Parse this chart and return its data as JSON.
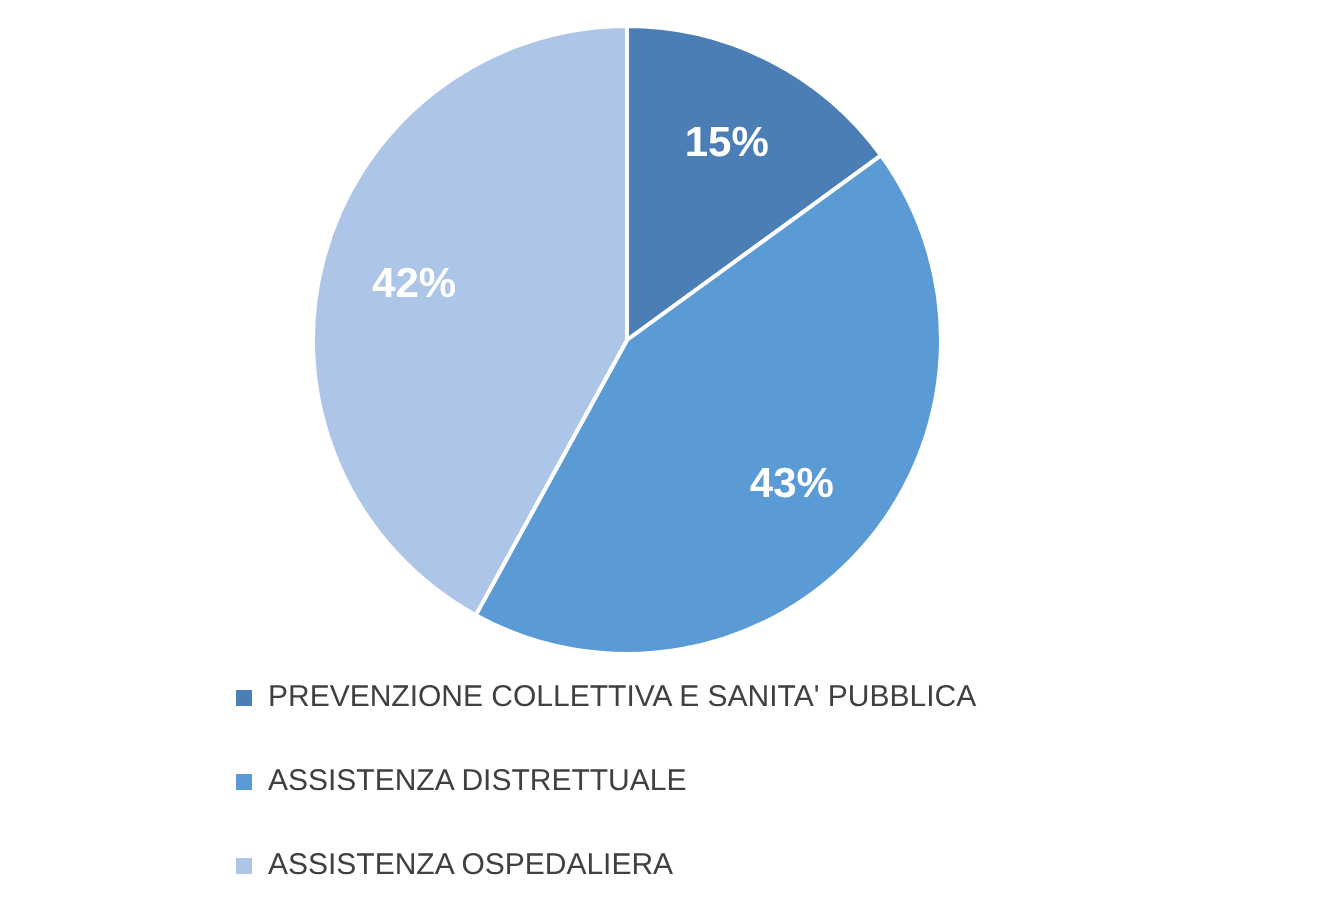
{
  "chart_data": {
    "type": "pie",
    "categories": [
      "PREVENZIONE COLLETTIVA E SANITA' PUBBLICA",
      "ASSISTENZA DISTRETTUALE",
      "ASSISTENZA OSPEDALIERA"
    ],
    "values": [
      15,
      43,
      42
    ],
    "colors": [
      "#4a7eb4",
      "#5b9bd5",
      "#adc5e6"
    ],
    "value_labels": [
      "15%",
      "43%",
      "42%"
    ],
    "legend": "bottom"
  }
}
